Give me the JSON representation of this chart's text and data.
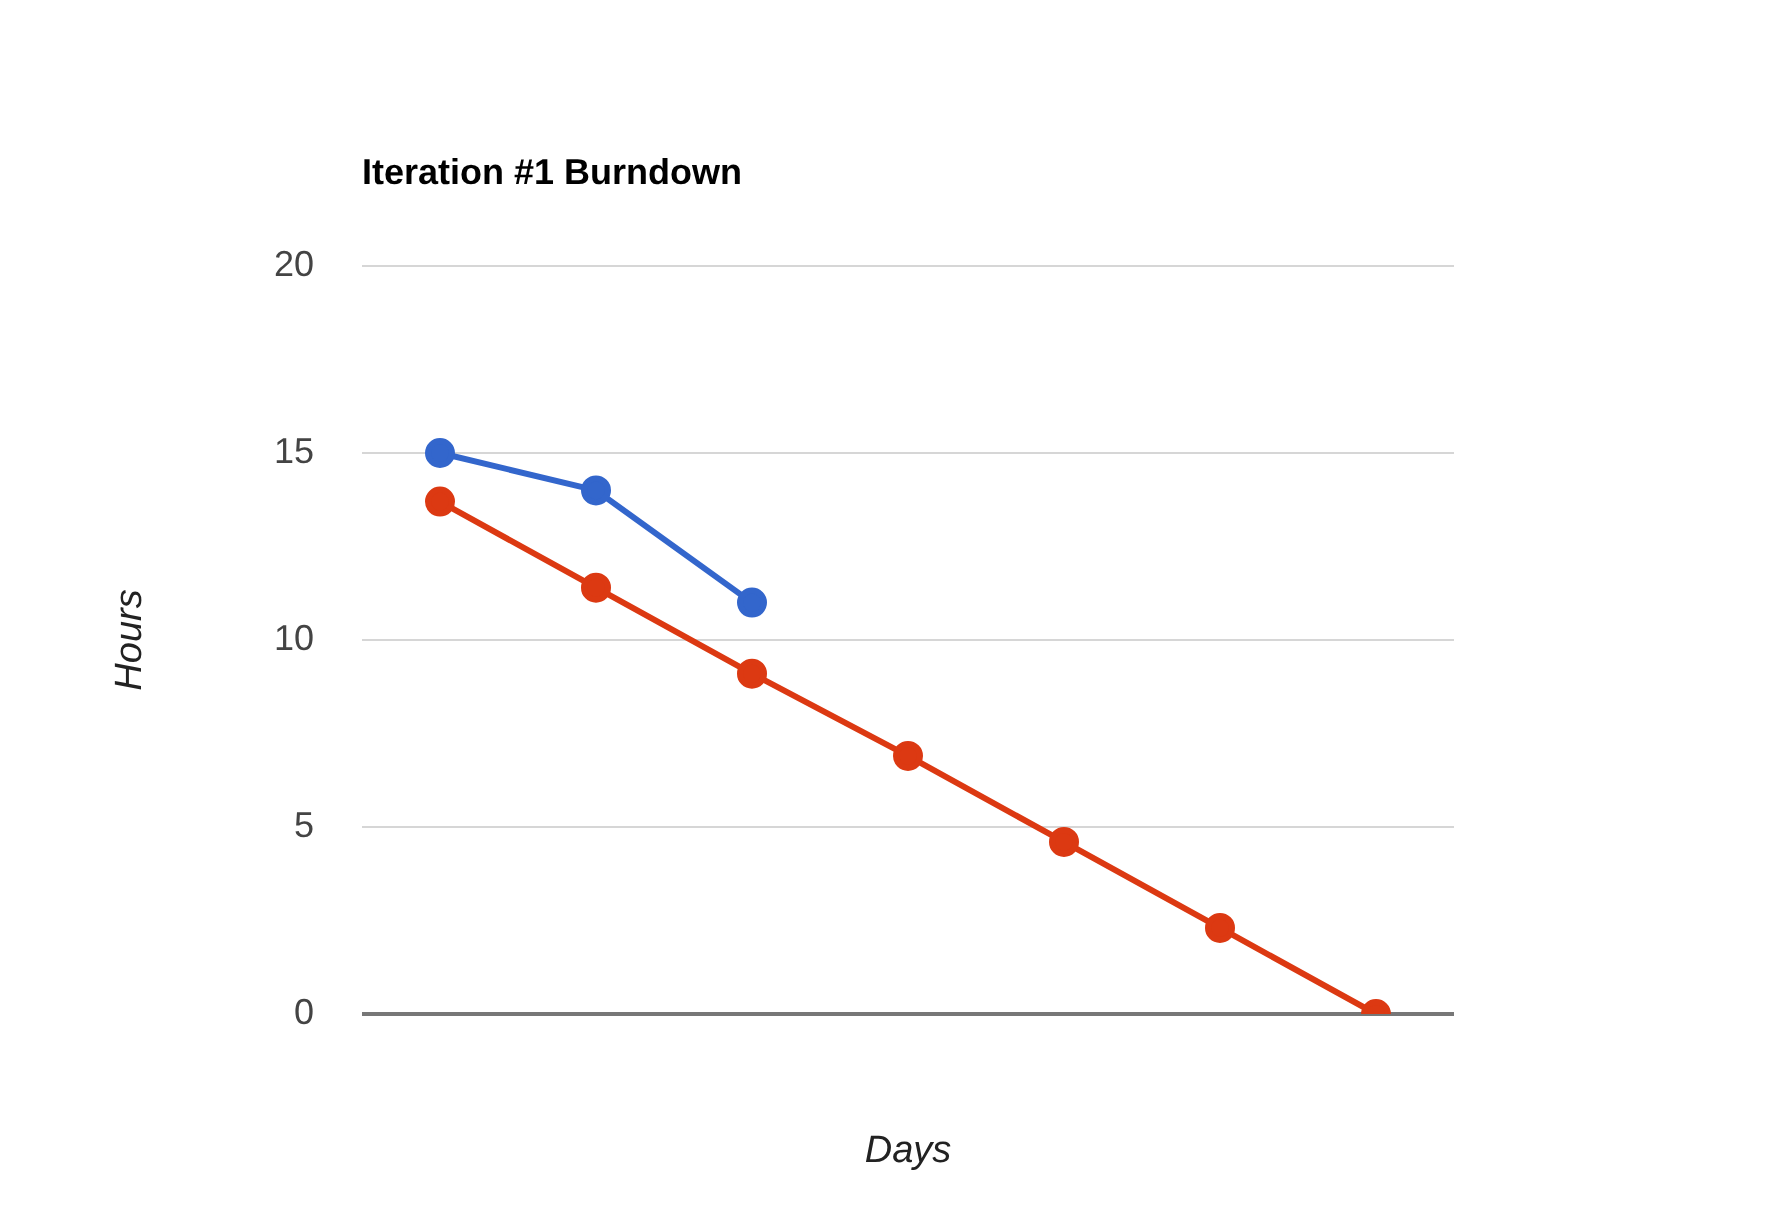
{
  "chart_data": {
    "type": "line",
    "title": "Iteration #1 Burndown",
    "xlabel": "Days",
    "ylabel": "Hours",
    "categories": [
      null,
      null,
      null,
      null,
      null,
      null,
      null
    ],
    "series": [
      {
        "color": "#3366cc",
        "values": [
          15,
          14,
          11,
          null,
          null,
          null,
          null
        ]
      },
      {
        "color": "#dc3912",
        "values": [
          13.7,
          11.4,
          9.1,
          6.9,
          4.6,
          2.3,
          0
        ]
      }
    ],
    "ylim": [
      0,
      20
    ],
    "yticks": [
      0,
      5,
      10,
      15,
      20
    ],
    "grid": "y",
    "legend": false,
    "marker": "circle",
    "line_style": "solid"
  }
}
